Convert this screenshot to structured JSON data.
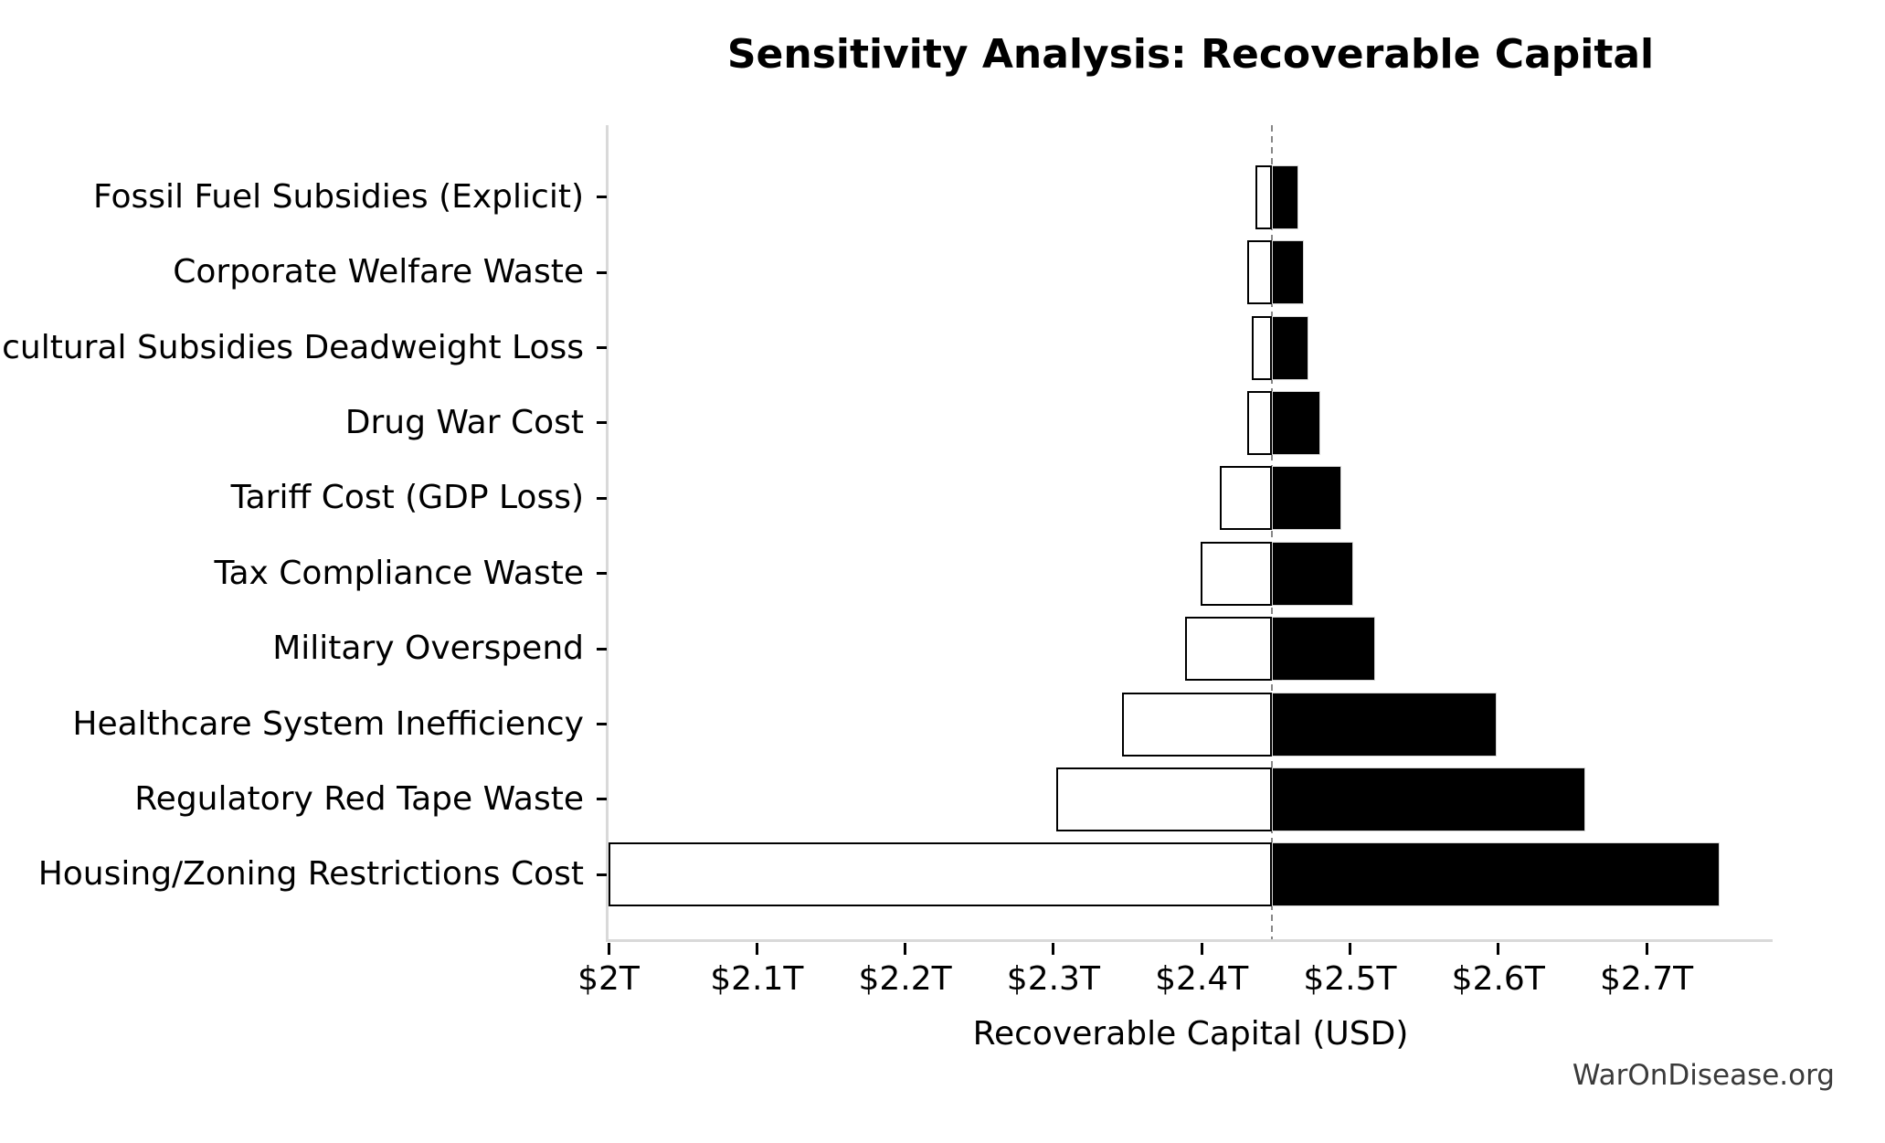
{
  "title": "Sensitivity Analysis: Recoverable Capital",
  "watermark": "WarOnDisease.org",
  "chart_data": {
    "type": "bar",
    "variant": "tornado-sensitivity",
    "title": "Sensitivity Analysis: Recoverable Capital",
    "xlabel": "Recoverable Capital (USD)",
    "ylabel": "",
    "units": "trillions USD",
    "xlim": [
      2.0,
      2.785
    ],
    "base_value": 2.4475,
    "grid": false,
    "legend": null,
    "x_ticks": [
      {
        "value": 2.0,
        "label": "$2T"
      },
      {
        "value": 2.1,
        "label": "$2.1T"
      },
      {
        "value": 2.2,
        "label": "$2.2T"
      },
      {
        "value": 2.3,
        "label": "$2.3T"
      },
      {
        "value": 2.4,
        "label": "$2.4T"
      },
      {
        "value": 2.5,
        "label": "$2.5T"
      },
      {
        "value": 2.6,
        "label": "$2.6T"
      },
      {
        "value": 2.7,
        "label": "$2.7T"
      }
    ],
    "categories": [
      "Fossil Fuel Subsidies (Explicit)",
      "Corporate Welfare Waste",
      "Agricultural Subsidies Deadweight Loss",
      "Drug War Cost",
      "Tariff Cost (GDP Loss)",
      "Tax Compliance Waste",
      "Military Overspend",
      "Healthcare System Inefficiency",
      "Regulatory Red Tape Waste",
      "Housing/Zoning Restrictions Cost"
    ],
    "series": [
      {
        "name": "low",
        "style": "white-fill-black-edge",
        "values": [
          2.436,
          2.431,
          2.434,
          2.431,
          2.412,
          2.399,
          2.389,
          2.346,
          2.302,
          2.0
        ]
      },
      {
        "name": "high",
        "style": "black-fill-gray-edge",
        "values": [
          2.465,
          2.469,
          2.472,
          2.48,
          2.494,
          2.502,
          2.517,
          2.599,
          2.659,
          2.749
        ]
      }
    ],
    "colors": {
      "low_fill": "#ffffff",
      "low_edge": "#000000",
      "high_fill": "#000000",
      "high_edge": "#d4d4d4",
      "baseline": "#878787",
      "spine": "#d9d9d9",
      "tick": "#000000",
      "text": "#000000",
      "watermark": "#3a3a3a",
      "background": "#ffffff"
    }
  }
}
